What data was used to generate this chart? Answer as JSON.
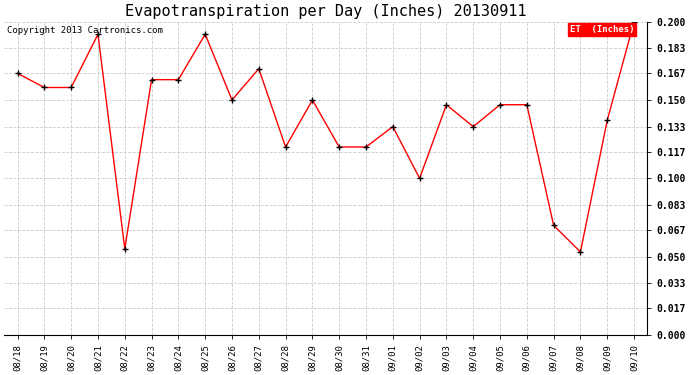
{
  "title": "Evapotranspiration per Day (Inches) 20130911",
  "copyright": "Copyright 2013 Cartronics.com",
  "legend_label": "ET  (Inches)",
  "x_labels": [
    "08/18",
    "08/19",
    "08/20",
    "08/21",
    "08/22",
    "08/23",
    "08/24",
    "08/25",
    "08/26",
    "08/27",
    "08/28",
    "08/29",
    "08/30",
    "08/31",
    "09/01",
    "09/02",
    "09/03",
    "09/04",
    "09/05",
    "09/06",
    "09/07",
    "09/08",
    "09/09",
    "09/10"
  ],
  "y_values": [
    0.167,
    0.158,
    0.158,
    0.192,
    0.055,
    0.163,
    0.163,
    0.192,
    0.15,
    0.17,
    0.12,
    0.15,
    0.12,
    0.12,
    0.133,
    0.1,
    0.147,
    0.133,
    0.147,
    0.147,
    0.07,
    0.053,
    0.137,
    0.2
  ],
  "line_color": "#ff0000",
  "marker": "+",
  "marker_color": "#000000",
  "grid_color": "#cccccc",
  "background_color": "#ffffff",
  "ylim": [
    0.0,
    0.2
  ],
  "yticks": [
    0.0,
    0.017,
    0.033,
    0.05,
    0.067,
    0.083,
    0.1,
    0.117,
    0.133,
    0.15,
    0.167,
    0.183,
    0.2
  ],
  "title_fontsize": 11,
  "copyright_fontsize": 6.5,
  "tick_fontsize": 6.5,
  "ytick_fontsize": 7,
  "legend_bg": "#ff0000",
  "legend_text_color": "#ffffff",
  "legend_fontsize": 6.5
}
